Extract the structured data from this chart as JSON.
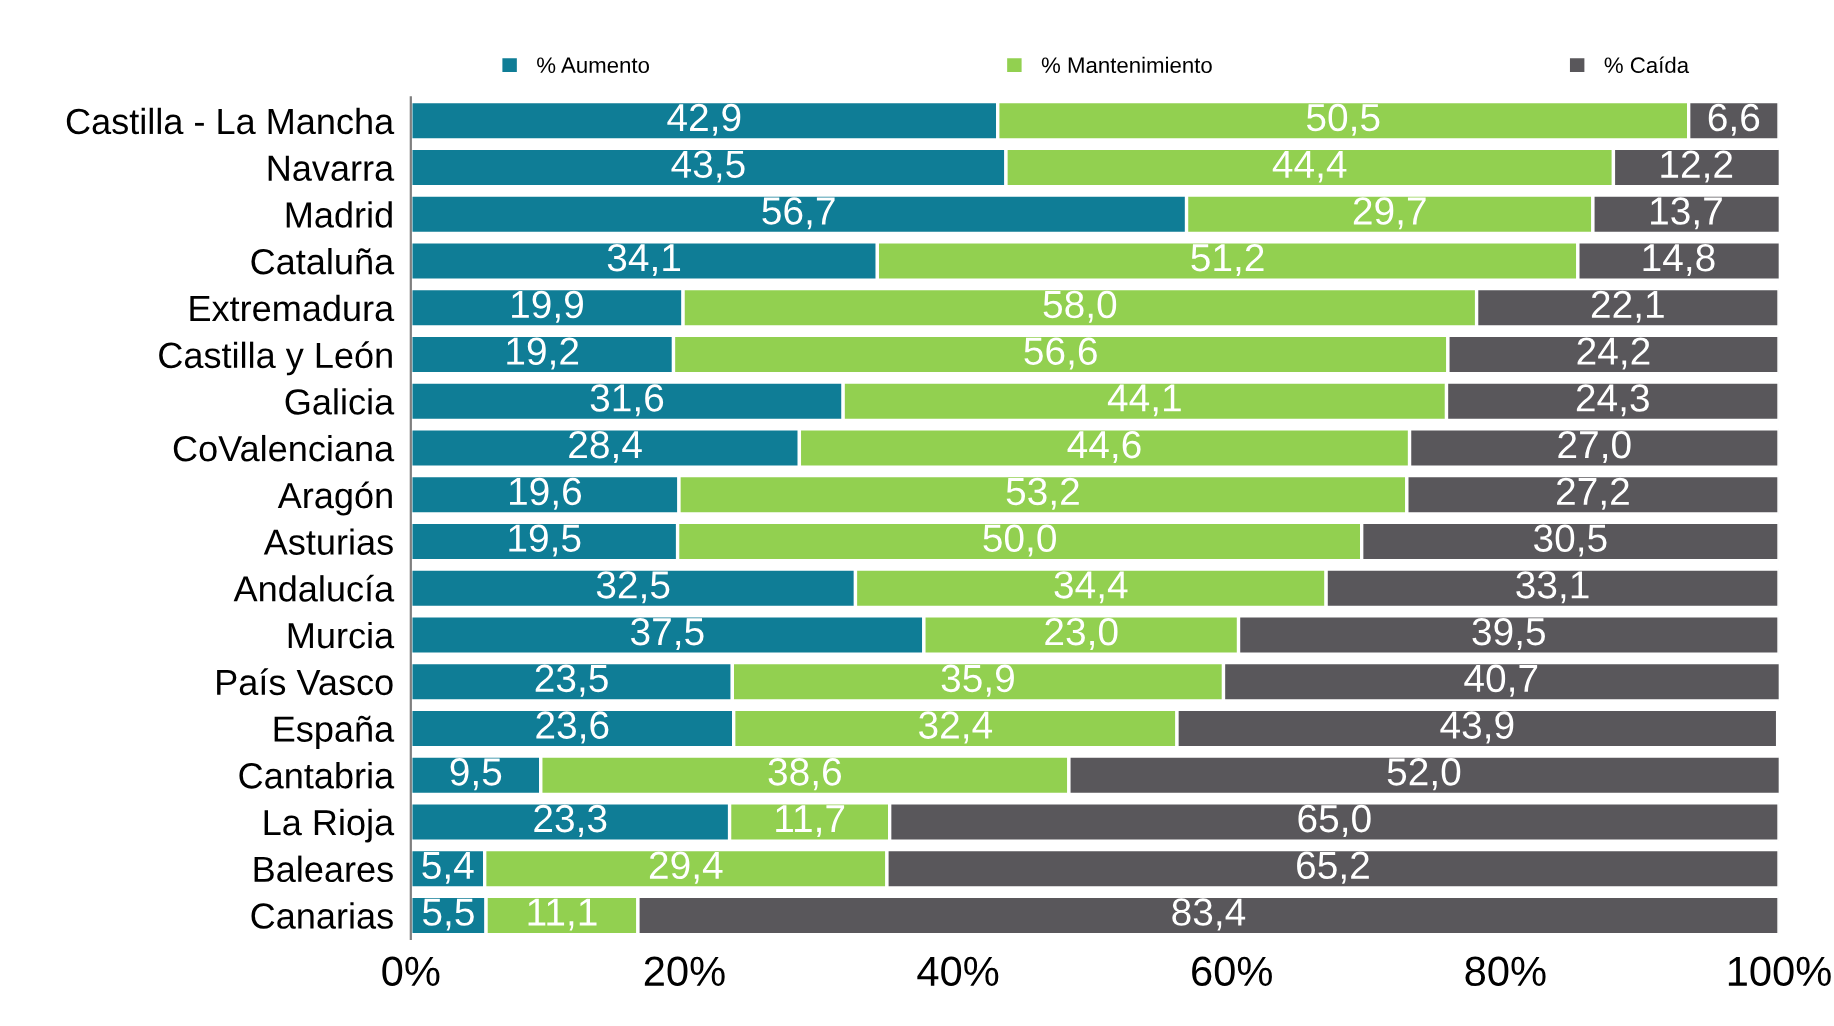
{
  "chart_data": {
    "type": "bar",
    "orientation": "horizontal",
    "stacked": true,
    "categories": [
      "Castilla - La Mancha",
      "Navarra",
      "Madrid",
      "Cataluña",
      "Extremadura",
      "Castilla y León",
      "Galicia",
      "CoValenciana",
      "Aragón",
      "Asturias",
      "Andalucía",
      "Murcia",
      "País Vasco",
      "España",
      "Cantabria",
      "La Rioja",
      "Baleares",
      "Canarias"
    ],
    "series": [
      {
        "name": "% Aumento",
        "color": "#0f7d96",
        "values": [
          42.9,
          43.5,
          56.7,
          34.1,
          19.9,
          19.2,
          31.6,
          28.4,
          19.6,
          19.5,
          32.5,
          37.5,
          23.5,
          23.6,
          9.5,
          23.3,
          5.4,
          5.5
        ],
        "value_labels": [
          "42,9",
          "43,5",
          "56,7",
          "34,1",
          "19,9",
          "19,2",
          "31,6",
          "28,4",
          "19,6",
          "19,5",
          "32,5",
          "37,5",
          "23,5",
          "23,6",
          "9,5",
          "23,3",
          "5,4",
          "5,5"
        ]
      },
      {
        "name": "% Mantenimiento",
        "color": "#92d050",
        "values": [
          50.5,
          44.4,
          29.7,
          51.2,
          58.0,
          56.6,
          44.1,
          44.6,
          53.2,
          50.0,
          34.4,
          23.0,
          35.9,
          32.4,
          38.6,
          11.7,
          29.4,
          11.1
        ],
        "value_labels": [
          "50,5",
          "44,4",
          "29,7",
          "51,2",
          "58,0",
          "56,6",
          "44,1",
          "44,6",
          "53,2",
          "50,0",
          "34,4",
          "23,0",
          "35,9",
          "32,4",
          "38,6",
          "11,7",
          "29,4",
          "11,1"
        ]
      },
      {
        "name": "% Caída",
        "color": "#59575b",
        "values": [
          6.6,
          12.2,
          13.7,
          14.8,
          22.1,
          24.2,
          24.3,
          27.0,
          27.2,
          30.5,
          33.1,
          39.5,
          40.7,
          43.9,
          52.0,
          65.0,
          65.2,
          83.4
        ],
        "value_labels": [
          "6,6",
          "12,2",
          "13,7",
          "14,8",
          "22,1",
          "24,2",
          "24,3",
          "27,0",
          "27,2",
          "30,5",
          "33,1",
          "39,5",
          "40,7",
          "43,9",
          "52,0",
          "65,0",
          "65,2",
          "83,4"
        ]
      }
    ],
    "xlim": [
      0,
      100
    ],
    "xticks": [
      {
        "value": 0,
        "label": "0%"
      },
      {
        "value": 20,
        "label": "20%"
      },
      {
        "value": 40,
        "label": "40%"
      },
      {
        "value": 60,
        "label": "60%"
      },
      {
        "value": 80,
        "label": "80%"
      },
      {
        "value": 100,
        "label": "100%"
      }
    ],
    "grid": false,
    "legend": "top"
  }
}
